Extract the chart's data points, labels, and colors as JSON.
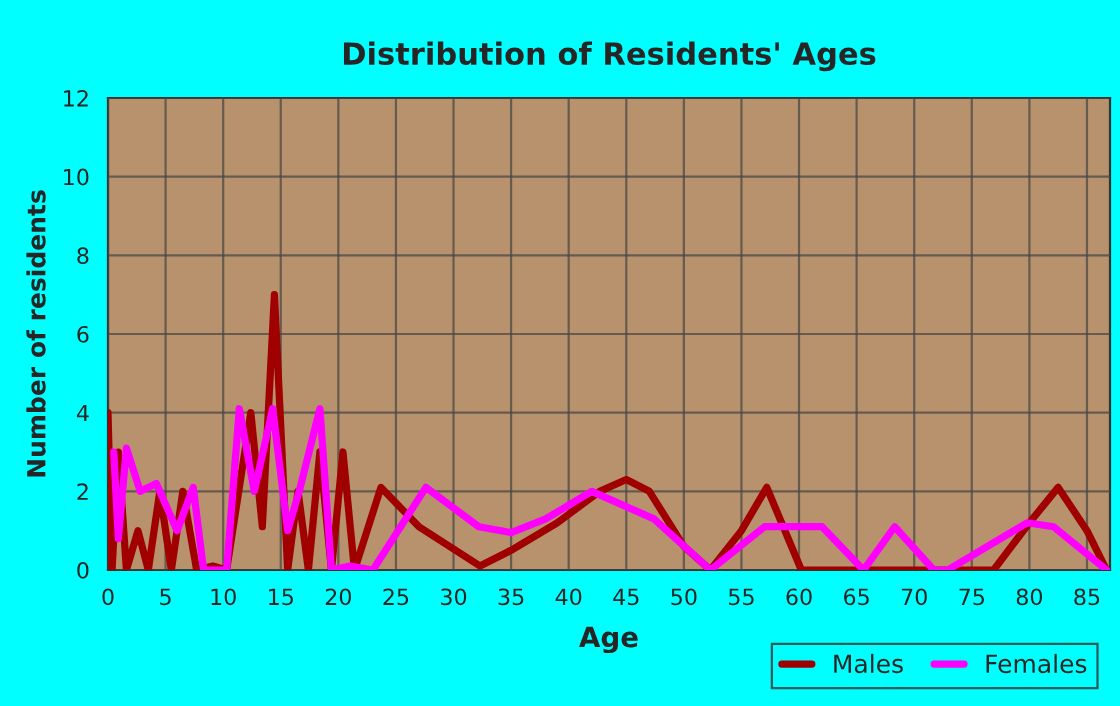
{
  "chart_data": {
    "type": "line",
    "title": "Distribution of Residents' Ages",
    "xlabel": "Age",
    "ylabel": "Number of residents",
    "xlim": [
      0,
      87
    ],
    "xticks": [
      0,
      5,
      10,
      15,
      20,
      25,
      30,
      35,
      40,
      45,
      50,
      55,
      60,
      65,
      70,
      75,
      80,
      85
    ],
    "ylim": [
      0,
      12
    ],
    "yticks": [
      0,
      2,
      4,
      6,
      8,
      10,
      12
    ],
    "grid": true,
    "legend": "bottom right",
    "line_style": "solid",
    "marker": "none",
    "series": [
      {
        "name": "Males",
        "color": "#a00000",
        "x": [
          0,
          0.35,
          0.9,
          1.6,
          2.6,
          3.5,
          4.5,
          5.5,
          6.5,
          7.7,
          9.1,
          10.3,
          12.4,
          13.4,
          14.45,
          15.6,
          16.5,
          17.4,
          18.4,
          19.4,
          20.4,
          21.4,
          23.7,
          27,
          32.3,
          35,
          39,
          42.7,
          45,
          47,
          50,
          52.3,
          55,
          57.2,
          60.2,
          65,
          70,
          76.9,
          80,
          82.5,
          85,
          86.7
        ],
        "values": [
          4,
          0,
          3,
          0,
          1,
          0,
          2,
          0,
          2,
          0,
          0.1,
          0,
          4,
          1.1,
          7,
          0,
          2,
          0,
          3,
          0,
          3,
          0,
          2.1,
          1.1,
          0.1,
          0.5,
          1.2,
          2,
          2.3,
          2,
          0.6,
          0,
          1,
          2.1,
          0,
          0,
          0,
          0,
          1.2,
          2.1,
          1,
          0
        ]
      },
      {
        "name": "Females",
        "color": "#ff00ff",
        "x": [
          0.5,
          0.9,
          1.6,
          2.8,
          4.2,
          6,
          7.4,
          8.3,
          10.3,
          11.4,
          12.7,
          14.3,
          15.6,
          16.6,
          18.4,
          19.4,
          21,
          23,
          27.6,
          32.2,
          35,
          38,
          42,
          47.4,
          52.3,
          57,
          62,
          65.6,
          68.3,
          71.7,
          72.9,
          79.8,
          82.1,
          86.7
        ],
        "values": [
          3,
          0.8,
          3.1,
          2,
          2.2,
          1,
          2.1,
          0,
          0,
          4.1,
          2,
          4.1,
          1,
          2,
          4.1,
          0,
          0.1,
          0,
          2.1,
          1.1,
          0.95,
          1.3,
          2,
          1.3,
          0,
          1.1,
          1.1,
          0,
          1.1,
          0,
          0,
          1.2,
          1.1,
          0
        ]
      }
    ]
  }
}
